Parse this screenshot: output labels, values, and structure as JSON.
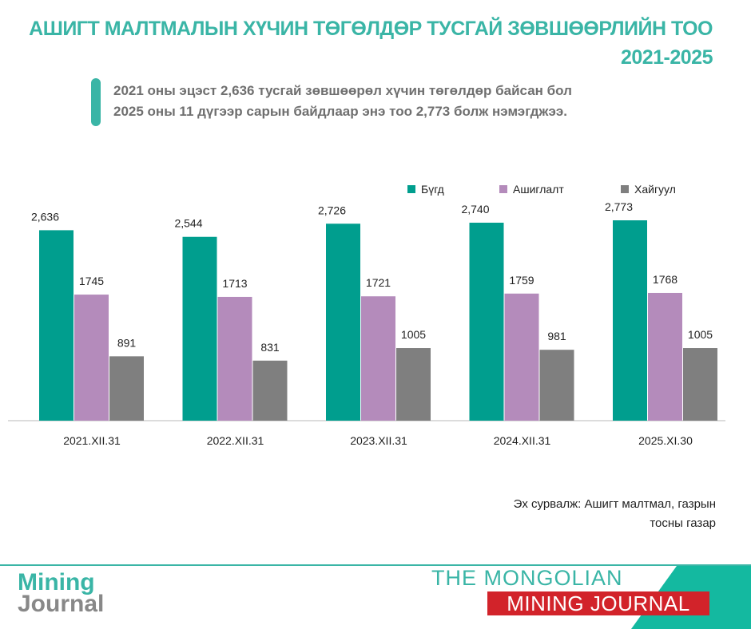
{
  "header": {
    "title_line1": "АШИГТ МАЛТМАЛЫН ХҮЧИН ТӨГӨЛДӨР ТУСГАЙ ЗӨВШӨӨРЛИЙН ТОО",
    "title_line2": "2021-2025"
  },
  "summary": {
    "line1": "2021 оны эцэст 2,636 тусгай зөвшөөрөл хүчин төгөлдөр байсан бол",
    "line2": "2025 оны 11 дүгээр сарын байдлаар энэ тоо 2,773 болж нэмэгджээ."
  },
  "chart_data": {
    "type": "bar",
    "categories": [
      "2021.XII.31",
      "2022.XII.31",
      "2023.XII.31",
      "2024.XII.31",
      "2025.XI.30"
    ],
    "series": [
      {
        "name": "Бүгд",
        "color": "#009e8e",
        "values": [
          2636,
          2544,
          2726,
          2740,
          2773
        ],
        "labels": [
          "2,636",
          "2,544",
          "2,726",
          "2,740",
          "2,773"
        ]
      },
      {
        "name": "Ашиглалт",
        "color": "#b48bbb",
        "values": [
          1745,
          1713,
          1721,
          1759,
          1768
        ],
        "labels": [
          "1745",
          "1713",
          "1721",
          "1759",
          "1768"
        ]
      },
      {
        "name": "Хайгуул",
        "color": "#7f7f7f",
        "values": [
          891,
          831,
          1005,
          981,
          1005
        ],
        "labels": [
          "891",
          "831",
          "1005",
          "981",
          "1005"
        ]
      }
    ],
    "legend_position": "top-right",
    "grid": false,
    "ylim": [
      0,
      2900
    ]
  },
  "source": {
    "line1": "Эх сурвалж: Ашигт малтмал, газрын",
    "line2": "тосны газар"
  },
  "footer": {
    "brand_line1": "THE MONGOLIAN",
    "brand_line2": "MINING JOURNAL",
    "logo_top": "Mining",
    "logo_bottom": "Journal"
  }
}
